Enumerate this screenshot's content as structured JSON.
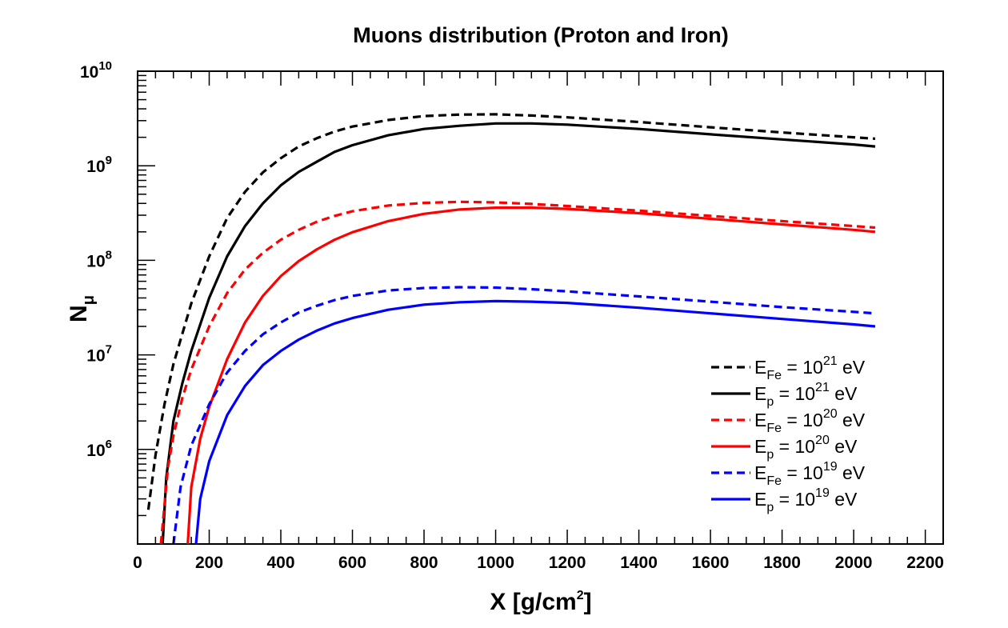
{
  "chart_data": {
    "type": "line",
    "title": "Muons distribution (Proton and Iron)",
    "xlabel": {
      "main": "X [g/cm",
      "sup": "2",
      "end": "]"
    },
    "ylabel": {
      "main": "N",
      "sub": "μ"
    },
    "xlim": [
      0,
      2250
    ],
    "ylim": [
      100000,
      10000000000
    ],
    "yscale": "log",
    "grid": false,
    "legend_position": "bottom-right",
    "x_ticks": [
      "0",
      "200",
      "400",
      "600",
      "800",
      "1000",
      "1200",
      "1400",
      "1600",
      "1800",
      "2000",
      "2200"
    ],
    "y_ticks": [
      {
        "base": "10",
        "exp": "6"
      },
      {
        "base": "10",
        "exp": "7"
      },
      {
        "base": "10",
        "exp": "8"
      },
      {
        "base": "10",
        "exp": "9"
      },
      {
        "base": "10",
        "exp": "10"
      }
    ],
    "series": [
      {
        "label": {
          "a": "E",
          "sub": "Fe",
          "b": " = 10",
          "sup": "21",
          "c": " eV"
        },
        "color": "#000000",
        "dash": true,
        "x": [
          30,
          50,
          75,
          100,
          150,
          200,
          250,
          300,
          350,
          400,
          450,
          500,
          550,
          600,
          700,
          800,
          900,
          1000,
          1100,
          1200,
          1400,
          1600,
          1800,
          2000,
          2060
        ],
        "y": [
          230000,
          870000,
          3000000,
          8000000,
          35000000,
          110000000,
          280000000,
          530000000,
          850000000,
          1200000000,
          1600000000,
          1950000000,
          2300000000,
          2600000000,
          3050000000,
          3350000000,
          3480000000,
          3500000000,
          3400000000,
          3250000000,
          2900000000,
          2550000000,
          2250000000,
          2000000000,
          1930000000
        ]
      },
      {
        "label": {
          "a": "E",
          "sub": "p",
          "b": " = 10",
          "sup": "21",
          "c": " eV"
        },
        "color": "#000000",
        "dash": false,
        "x": [
          70,
          80,
          100,
          125,
          150,
          200,
          250,
          300,
          350,
          400,
          450,
          500,
          550,
          600,
          700,
          800,
          900,
          1000,
          1100,
          1200,
          1400,
          1600,
          1800,
          2000,
          2060
        ],
        "y": [
          100000,
          500000,
          2000000,
          5000000,
          11000000,
          40000000,
          110000000,
          230000000,
          400000000,
          620000000,
          860000000,
          1100000000,
          1400000000,
          1650000000,
          2100000000,
          2450000000,
          2650000000,
          2800000000,
          2800000000,
          2720000000,
          2450000000,
          2150000000,
          1900000000,
          1680000000,
          1600000000
        ]
      },
      {
        "label": {
          "a": "E",
          "sub": "Fe",
          "b": " = 10",
          "sup": "20",
          "c": " eV"
        },
        "color": "#ff0000",
        "dash": true,
        "x": [
          65,
          85,
          100,
          125,
          150,
          200,
          250,
          300,
          350,
          400,
          450,
          500,
          550,
          600,
          700,
          800,
          900,
          1000,
          1100,
          1200,
          1400,
          1600,
          1800,
          2000,
          2060
        ],
        "y": [
          100000,
          650000,
          1400000,
          3500000,
          7000000,
          20000000,
          45000000,
          80000000,
          120000000,
          165000000,
          210000000,
          255000000,
          295000000,
          330000000,
          380000000,
          405000000,
          415000000,
          410000000,
          395000000,
          375000000,
          335000000,
          295000000,
          260000000,
          230000000,
          222000000
        ]
      },
      {
        "label": {
          "a": "E",
          "sub": "p",
          "b": " = 10",
          "sup": "20",
          "c": " eV"
        },
        "color": "#ff0000",
        "dash": false,
        "x": [
          140,
          150,
          175,
          200,
          250,
          300,
          350,
          400,
          450,
          500,
          550,
          600,
          700,
          800,
          900,
          1000,
          1100,
          1200,
          1400,
          1600,
          1800,
          2000,
          2060
        ],
        "y": [
          100000,
          400000,
          1300000,
          2800000,
          9000000,
          22000000,
          42000000,
          68000000,
          98000000,
          130000000,
          165000000,
          198000000,
          260000000,
          310000000,
          345000000,
          360000000,
          360000000,
          350000000,
          315000000,
          275000000,
          240000000,
          210000000,
          200000000
        ]
      },
      {
        "label": {
          "a": "E",
          "sub": "Fe",
          "b": " = 10",
          "sup": "19",
          "c": " eV"
        },
        "color": "#0000ff",
        "dash": true,
        "x": [
          100,
          120,
          150,
          200,
          250,
          300,
          350,
          400,
          450,
          500,
          550,
          600,
          700,
          800,
          900,
          1000,
          1100,
          1200,
          1400,
          1600,
          1800,
          2000,
          2060
        ],
        "y": [
          100000,
          400000,
          1100000,
          3000000,
          6500000,
          11000000,
          16500000,
          22000000,
          28000000,
          33000000,
          38000000,
          42000000,
          48000000,
          51000000,
          52000000,
          51500000,
          49500000,
          47000000,
          41500000,
          36500000,
          32000000,
          28500000,
          27500000
        ]
      },
      {
        "label": {
          "a": "E",
          "sub": "p",
          "b": " = 10",
          "sup": "19",
          "c": " eV"
        },
        "color": "#0000ff",
        "dash": false,
        "x": [
          163,
          175,
          200,
          250,
          300,
          350,
          400,
          450,
          500,
          550,
          600,
          700,
          800,
          900,
          1000,
          1100,
          1200,
          1400,
          1600,
          1800,
          2000,
          2060
        ],
        "y": [
          100000,
          300000,
          750000,
          2300000,
          4700000,
          7800000,
          11000000,
          14500000,
          18000000,
          21500000,
          24500000,
          30000000,
          34000000,
          36000000,
          37000000,
          36500000,
          35500000,
          31500000,
          27500000,
          24000000,
          21000000,
          20000000
        ]
      }
    ]
  }
}
